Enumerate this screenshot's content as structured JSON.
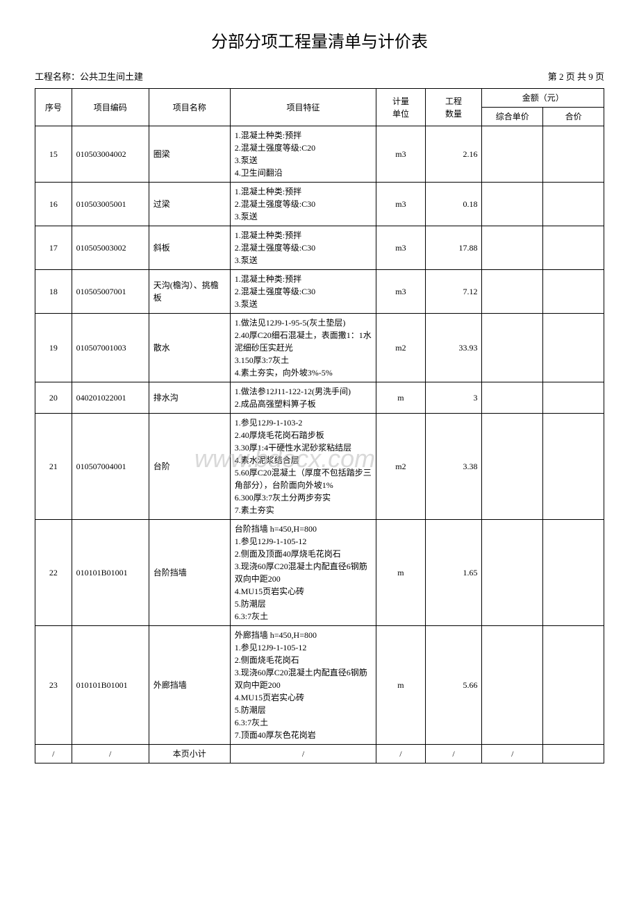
{
  "title": "分部分项工程量清单与计价表",
  "project_label": "工程名称：",
  "project_name": "公共卫生间土建",
  "page_info": "第 2 页 共 9 页",
  "watermark": "www.bdocx.com",
  "headers": {
    "seq": "序号",
    "code": "项目编码",
    "name": "项目名称",
    "feature": "项目特征",
    "unit": "计量\n单位",
    "qty": "工程\n数量",
    "amount": "金额（元）",
    "price": "综合单价",
    "total": "合价"
  },
  "rows": [
    {
      "seq": "15",
      "code": "010503004002",
      "name": "圈梁",
      "feature": "1.混凝土种类:预拌\n2.混凝土强度等级:C20\n3.泵送\n4.卫生间翻沿",
      "unit": "m3",
      "qty": "2.16",
      "price": "",
      "total": ""
    },
    {
      "seq": "16",
      "code": "010503005001",
      "name": "过梁",
      "feature": "1.混凝土种类:预拌\n2.混凝土强度等级:C30\n3.泵送",
      "unit": "m3",
      "qty": "0.18",
      "price": "",
      "total": ""
    },
    {
      "seq": "17",
      "code": "010505003002",
      "name": "斜板",
      "feature": "1.混凝土种类:预拌\n2.混凝土强度等级:C30\n3.泵送",
      "unit": "m3",
      "qty": "17.88",
      "price": "",
      "total": ""
    },
    {
      "seq": "18",
      "code": "010505007001",
      "name": "天沟(檐沟）、挑檐板",
      "feature": "1.混凝土种类:预拌\n2.混凝土强度等级:C30\n3.泵送",
      "unit": "m3",
      "qty": "7.12",
      "price": "",
      "total": ""
    },
    {
      "seq": "19",
      "code": "010507001003",
      "name": "散水",
      "feature": "1.做法见12J9-1-95-5(灰土垫层)\n2.40厚C20细石混凝土，表面撒1：1水泥细砂压实赶光\n3.150厚3:7灰土\n4.素土夯实，向外坡3%-5%",
      "unit": "m2",
      "qty": "33.93",
      "price": "",
      "total": ""
    },
    {
      "seq": "20",
      "code": "040201022001",
      "name": "排水沟",
      "feature": "1.做法参12J11-122-12(男洗手间)\n2.成品高强塑料箅子板",
      "unit": "m",
      "qty": "3",
      "price": "",
      "total": ""
    },
    {
      "seq": "21",
      "code": "010507004001",
      "name": "台阶",
      "feature": "1.参见12J9-1-103-2\n2.40厚烧毛花岗石踏步板\n3.30厚1:4干硬性水泥砂浆粘结层\n4.素水泥浆结合层\n5.60厚C20混凝土（厚度不包括踏步三角部分），台阶面向外坡1%\n6.300厚3:7灰土分两步夯实\n7.素土夯实",
      "unit": "m2",
      "qty": "3.38",
      "price": "",
      "total": ""
    },
    {
      "seq": "22",
      "code": "010101B01001",
      "name": "台阶挡墙",
      "feature": "台阶挡墙 h=450,H=800\n1.参见12J9-1-105-12\n2.侧面及顶面40厚烧毛花岗石\n3.现浇60厚C20混凝土内配直径6钢筋双向中距200\n4.MU15页岩实心砖\n5.防潮层\n6.3:7灰土",
      "unit": "m",
      "qty": "1.65",
      "price": "",
      "total": ""
    },
    {
      "seq": "23",
      "code": "010101B01001",
      "name": "外廊挡墙",
      "feature": "外廊挡墙 h=450,H=800\n1.参见12J9-1-105-12\n2.侧面烧毛花岗石\n3.现浇60厚C20混凝土内配直径6钢筋双向中距200\n4.MU15页岩实心砖\n5.防潮层\n6.3:7灰土\n7.顶面40厚灰色花岗岩",
      "unit": "m",
      "qty": "5.66",
      "price": "",
      "total": ""
    }
  ],
  "footer": {
    "seq": "/",
    "code": "/",
    "name": "本页小计",
    "feature": "/",
    "unit": "/",
    "qty": "/",
    "price": "/",
    "total": ""
  }
}
